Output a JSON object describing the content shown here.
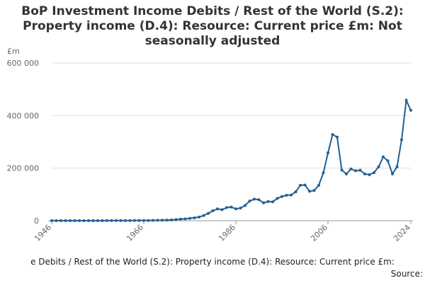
{
  "chart_data": {
    "type": "line",
    "title": "BoP Investment Income Debits / Rest of the World (S.2): Property income (D.4): Resource: Current price £m: Not seasonally adjusted",
    "y_label": "£m",
    "footer": "e Debits / Rest of the World (S.2): Property income (D.4): Resource: Current price £m:",
    "source": "Source:",
    "x": [
      1946,
      1947,
      1948,
      1949,
      1950,
      1951,
      1952,
      1953,
      1954,
      1955,
      1956,
      1957,
      1958,
      1959,
      1960,
      1961,
      1962,
      1963,
      1964,
      1965,
      1966,
      1967,
      1968,
      1969,
      1970,
      1971,
      1972,
      1973,
      1974,
      1975,
      1976,
      1977,
      1978,
      1979,
      1980,
      1981,
      1982,
      1983,
      1984,
      1985,
      1986,
      1987,
      1988,
      1989,
      1990,
      1991,
      1992,
      1993,
      1994,
      1995,
      1996,
      1997,
      1998,
      1999,
      2000,
      2001,
      2002,
      2003,
      2004,
      2005,
      2006,
      2007,
      2008,
      2009,
      2010,
      2011,
      2012,
      2013,
      2014,
      2015,
      2016,
      2017,
      2018,
      2019,
      2020,
      2021,
      2022,
      2023,
      2024
    ],
    "series": [
      {
        "color": "#206095",
        "values": [
          200,
          200,
          250,
          250,
          300,
          350,
          350,
          350,
          400,
          450,
          500,
          500,
          550,
          550,
          650,
          700,
          700,
          750,
          850,
          950,
          1000,
          1100,
          1300,
          1600,
          2000,
          2500,
          3000,
          4500,
          6000,
          7000,
          9000,
          11000,
          14000,
          20000,
          28000,
          38000,
          45000,
          42000,
          50000,
          52000,
          45000,
          48000,
          58000,
          75000,
          82000,
          80000,
          68000,
          73000,
          72000,
          85000,
          92000,
          97000,
          98000,
          110000,
          135000,
          136000,
          112000,
          115000,
          135000,
          182000,
          258000,
          328000,
          318000,
          193000,
          178000,
          197000,
          190000,
          192000,
          178000,
          175000,
          183000,
          205000,
          243000,
          228000,
          178000,
          205000,
          308000,
          458000,
          420000
        ]
      }
    ],
    "xlim": [
      1946,
      2024
    ],
    "xticks": [
      1946,
      1966,
      1986,
      2006,
      2024
    ],
    "ylim": [
      0,
      600000
    ],
    "yticks": [
      0,
      {
        "value": 200000,
        "label": "200 000"
      },
      {
        "value": 400000,
        "label": "400 000"
      },
      {
        "value": 600000,
        "label": "600 000"
      }
    ],
    "grid": true
  }
}
